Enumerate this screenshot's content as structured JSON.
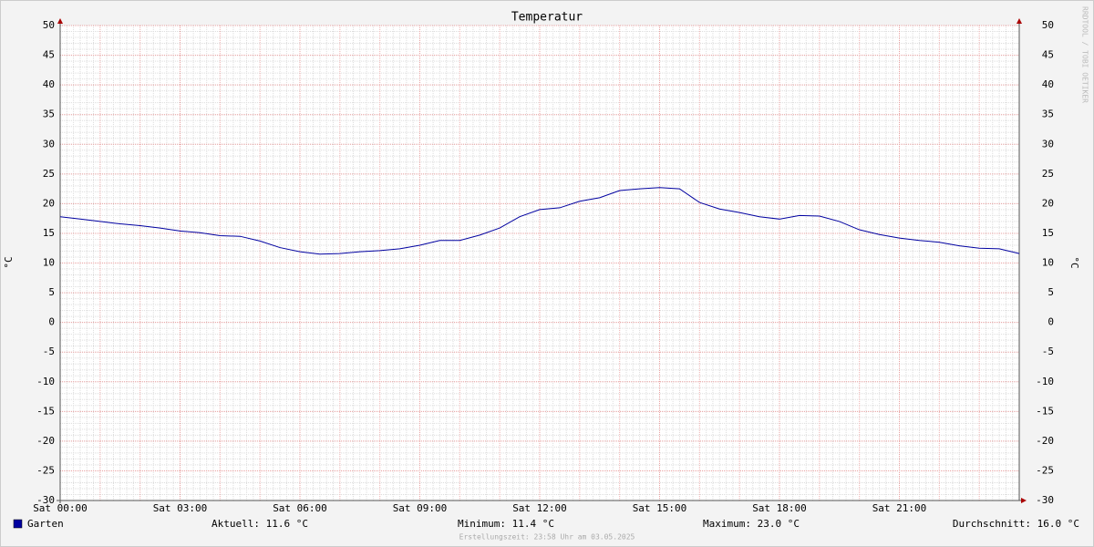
{
  "chart_data": {
    "type": "line",
    "title": "Temperatur",
    "y_label": "°C",
    "x": [
      0,
      0.5,
      1,
      1.5,
      2,
      2.5,
      3,
      3.5,
      4,
      4.5,
      5,
      5.5,
      6,
      6.5,
      7,
      7.5,
      8,
      8.5,
      9,
      9.5,
      10,
      10.5,
      11,
      11.5,
      12,
      12.5,
      13,
      13.5,
      14,
      14.5,
      15,
      15.5,
      16,
      16.5,
      17,
      17.5,
      18,
      18.5,
      19,
      19.5,
      20,
      20.5,
      21,
      21.5,
      22,
      22.5,
      23,
      23.5,
      24
    ],
    "series": [
      {
        "name": "Garten",
        "color": "#0000a0",
        "values": [
          17.8,
          17.4,
          17.0,
          16.6,
          16.3,
          15.9,
          15.4,
          15.1,
          14.6,
          14.5,
          13.7,
          12.6,
          11.9,
          11.5,
          11.6,
          11.9,
          12.1,
          12.4,
          13.0,
          13.8,
          13.8,
          14.7,
          15.9,
          17.8,
          19.0,
          19.3,
          20.4,
          21.0,
          22.2,
          22.5,
          22.7,
          22.5,
          20.2,
          19.1,
          18.5,
          17.8,
          17.4,
          18.0,
          17.9,
          17.0,
          15.6,
          14.8,
          14.2,
          13.8,
          13.5,
          12.9,
          12.5,
          12.4,
          11.6
        ]
      }
    ],
    "xlim": [
      0,
      24
    ],
    "xticks": [
      {
        "value": 0,
        "label": "Sat 00:00"
      },
      {
        "value": 3,
        "label": "Sat 03:00"
      },
      {
        "value": 6,
        "label": "Sat 06:00"
      },
      {
        "value": 9,
        "label": "Sat 09:00"
      },
      {
        "value": 12,
        "label": "Sat 12:00"
      },
      {
        "value": 15,
        "label": "Sat 15:00"
      },
      {
        "value": 18,
        "label": "Sat 18:00"
      },
      {
        "value": 21,
        "label": "Sat 21:00"
      }
    ],
    "ylim": [
      -30,
      50
    ],
    "yticks": [
      -30,
      -25,
      -20,
      -15,
      -10,
      -5,
      0,
      5,
      10,
      15,
      20,
      25,
      30,
      35,
      40,
      45,
      50
    ],
    "grid": true,
    "legend_stats": [
      "Aktuell: 11.6 °C",
      "Minimum: 11.4 °C",
      "Maximum: 23.0 °C",
      "Durchschnitt: 16.0 °C"
    ],
    "footer": "Erstellungszeit: 23:58 Uhr am 03.05.2025",
    "watermark": "RRDTOOL / TOBI OETIKER"
  }
}
